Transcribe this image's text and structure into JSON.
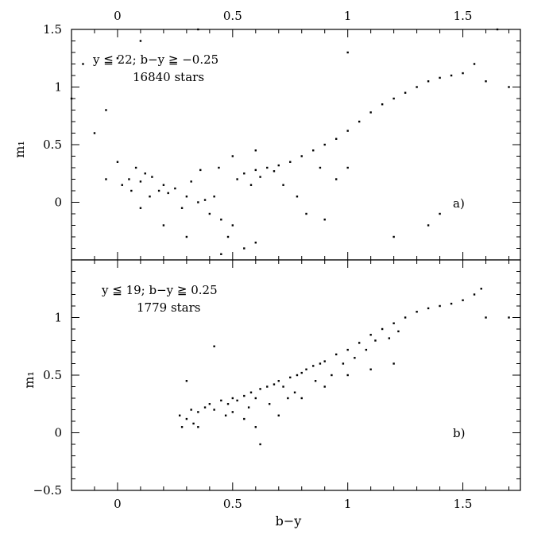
{
  "chart_data": [
    {
      "type": "scatter",
      "panel_label": "a)",
      "annotation_lines": [
        "y ≦ 22; b−y ≧ −0.25",
        "16840 stars"
      ],
      "xlabel": "",
      "ylabel": "m₁",
      "xlim": [
        -0.2,
        1.75
      ],
      "ylim": [
        -0.5,
        1.5
      ],
      "x_ticks": [
        0,
        0.5,
        1,
        1.5
      ],
      "x_tick_labels_top": [
        "0",
        "0.5",
        "1",
        "1.5"
      ],
      "y_ticks": [
        0,
        0.5,
        1,
        1.5
      ],
      "y_tick_labels": [
        "0",
        "0.5",
        "1",
        "1.5"
      ],
      "point_color": "#000000",
      "series": [
        {
          "points": [
            [
              0.05,
              0.2
            ],
            [
              0.1,
              0.18
            ],
            [
              0.15,
              0.22
            ],
            [
              0.2,
              0.15
            ],
            [
              0.12,
              0.25
            ],
            [
              0.08,
              0.3
            ],
            [
              0.18,
              0.1
            ],
            [
              0.25,
              0.12
            ],
            [
              0.3,
              0.05
            ],
            [
              0.35,
              0.0
            ],
            [
              0.28,
              -0.05
            ],
            [
              0.22,
              0.08
            ],
            [
              0.4,
              -0.1
            ],
            [
              0.45,
              -0.15
            ],
            [
              0.5,
              -0.2
            ],
            [
              0.38,
              0.02
            ],
            [
              0.02,
              0.15
            ],
            [
              -0.05,
              0.2
            ],
            [
              0.0,
              0.35
            ],
            [
              0.06,
              0.1
            ],
            [
              0.14,
              0.05
            ],
            [
              0.32,
              0.18
            ],
            [
              0.42,
              0.05
            ],
            [
              0.48,
              -0.3
            ],
            [
              0.55,
              0.25
            ],
            [
              0.6,
              0.28
            ],
            [
              0.65,
              0.3
            ],
            [
              0.7,
              0.32
            ],
            [
              0.52,
              0.2
            ],
            [
              0.58,
              0.15
            ],
            [
              0.62,
              0.22
            ],
            [
              0.68,
              0.27
            ],
            [
              0.75,
              0.35
            ],
            [
              0.8,
              0.4
            ],
            [
              0.85,
              0.45
            ],
            [
              0.9,
              0.5
            ],
            [
              0.95,
              0.55
            ],
            [
              1.0,
              0.62
            ],
            [
              1.05,
              0.7
            ],
            [
              1.1,
              0.78
            ],
            [
              1.15,
              0.85
            ],
            [
              1.2,
              0.9
            ],
            [
              1.25,
              0.95
            ],
            [
              1.3,
              1.0
            ],
            [
              1.35,
              1.05
            ],
            [
              1.4,
              1.08
            ],
            [
              1.45,
              1.1
            ],
            [
              1.5,
              1.12
            ],
            [
              1.55,
              1.2
            ],
            [
              1.6,
              1.05
            ],
            [
              1.7,
              1.0
            ],
            [
              1.65,
              1.5
            ],
            [
              1.0,
              1.3
            ],
            [
              0.35,
              1.5
            ],
            [
              0.0,
              1.25
            ],
            [
              0.1,
              1.4
            ],
            [
              -0.15,
              1.2
            ],
            [
              -0.2,
              0.9
            ],
            [
              -0.1,
              0.6
            ],
            [
              -0.05,
              0.8
            ],
            [
              0.45,
              -0.45
            ],
            [
              0.55,
              -0.4
            ],
            [
              0.6,
              -0.35
            ],
            [
              0.3,
              -0.3
            ],
            [
              0.2,
              -0.2
            ],
            [
              0.1,
              -0.05
            ],
            [
              0.72,
              0.15
            ],
            [
              0.78,
              0.05
            ],
            [
              0.82,
              -0.1
            ],
            [
              0.9,
              -0.15
            ],
            [
              1.2,
              -0.3
            ],
            [
              1.35,
              -0.2
            ],
            [
              1.4,
              -0.1
            ],
            [
              1.0,
              0.3
            ],
            [
              0.95,
              0.2
            ],
            [
              0.88,
              0.3
            ],
            [
              0.6,
              0.45
            ],
            [
              0.5,
              0.4
            ],
            [
              0.44,
              0.3
            ],
            [
              0.36,
              0.28
            ]
          ]
        }
      ]
    },
    {
      "type": "scatter",
      "panel_label": "b)",
      "annotation_lines": [
        "y ≦ 19; b−y ≧ 0.25",
        "1779 stars"
      ],
      "xlabel": "b−y",
      "ylabel": "m₁",
      "xlim": [
        -0.2,
        1.75
      ],
      "ylim": [
        -0.5,
        1.5
      ],
      "x_ticks": [
        0,
        0.5,
        1,
        1.5
      ],
      "x_tick_labels": [
        "0",
        "0.5",
        "1",
        "1.5"
      ],
      "y_ticks": [
        -0.5,
        0,
        0.5,
        1
      ],
      "y_tick_labels": [
        "−0.5",
        "0",
        "0.5",
        "1"
      ],
      "point_color": "#000000",
      "series": [
        {
          "points": [
            [
              0.27,
              0.15
            ],
            [
              0.3,
              0.12
            ],
            [
              0.32,
              0.2
            ],
            [
              0.35,
              0.18
            ],
            [
              0.38,
              0.22
            ],
            [
              0.4,
              0.25
            ],
            [
              0.42,
              0.2
            ],
            [
              0.45,
              0.28
            ],
            [
              0.48,
              0.25
            ],
            [
              0.5,
              0.3
            ],
            [
              0.52,
              0.28
            ],
            [
              0.55,
              0.32
            ],
            [
              0.58,
              0.35
            ],
            [
              0.6,
              0.3
            ],
            [
              0.62,
              0.38
            ],
            [
              0.65,
              0.4
            ],
            [
              0.68,
              0.42
            ],
            [
              0.7,
              0.45
            ],
            [
              0.72,
              0.4
            ],
            [
              0.75,
              0.48
            ],
            [
              0.78,
              0.5
            ],
            [
              0.8,
              0.52
            ],
            [
              0.82,
              0.55
            ],
            [
              0.85,
              0.58
            ],
            [
              0.88,
              0.6
            ],
            [
              0.9,
              0.62
            ],
            [
              0.95,
              0.68
            ],
            [
              1.0,
              0.72
            ],
            [
              1.05,
              0.78
            ],
            [
              1.1,
              0.85
            ],
            [
              1.15,
              0.9
            ],
            [
              1.2,
              0.95
            ],
            [
              1.25,
              1.0
            ],
            [
              1.3,
              1.05
            ],
            [
              1.35,
              1.08
            ],
            [
              1.4,
              1.1
            ],
            [
              1.45,
              1.12
            ],
            [
              1.5,
              1.15
            ],
            [
              1.55,
              1.2
            ],
            [
              1.6,
              1.0
            ],
            [
              1.7,
              1.0
            ],
            [
              1.58,
              1.25
            ],
            [
              0.42,
              0.75
            ],
            [
              0.3,
              0.45
            ],
            [
              0.35,
              0.05
            ],
            [
              0.55,
              0.12
            ],
            [
              0.6,
              0.05
            ],
            [
              0.62,
              -0.1
            ],
            [
              0.7,
              0.15
            ],
            [
              0.8,
              0.3
            ],
            [
              0.9,
              0.4
            ],
            [
              1.1,
              0.55
            ],
            [
              1.2,
              0.6
            ],
            [
              1.0,
              0.5
            ],
            [
              0.28,
              0.05
            ],
            [
              0.33,
              0.08
            ],
            [
              0.47,
              0.15
            ],
            [
              0.5,
              0.18
            ],
            [
              0.57,
              0.22
            ],
            [
              0.66,
              0.25
            ],
            [
              0.74,
              0.3
            ],
            [
              0.77,
              0.35
            ],
            [
              0.86,
              0.45
            ],
            [
              0.93,
              0.5
            ],
            [
              0.98,
              0.6
            ],
            [
              1.03,
              0.65
            ],
            [
              1.08,
              0.72
            ],
            [
              1.12,
              0.8
            ],
            [
              1.18,
              0.82
            ],
            [
              1.22,
              0.88
            ]
          ]
        }
      ]
    }
  ]
}
